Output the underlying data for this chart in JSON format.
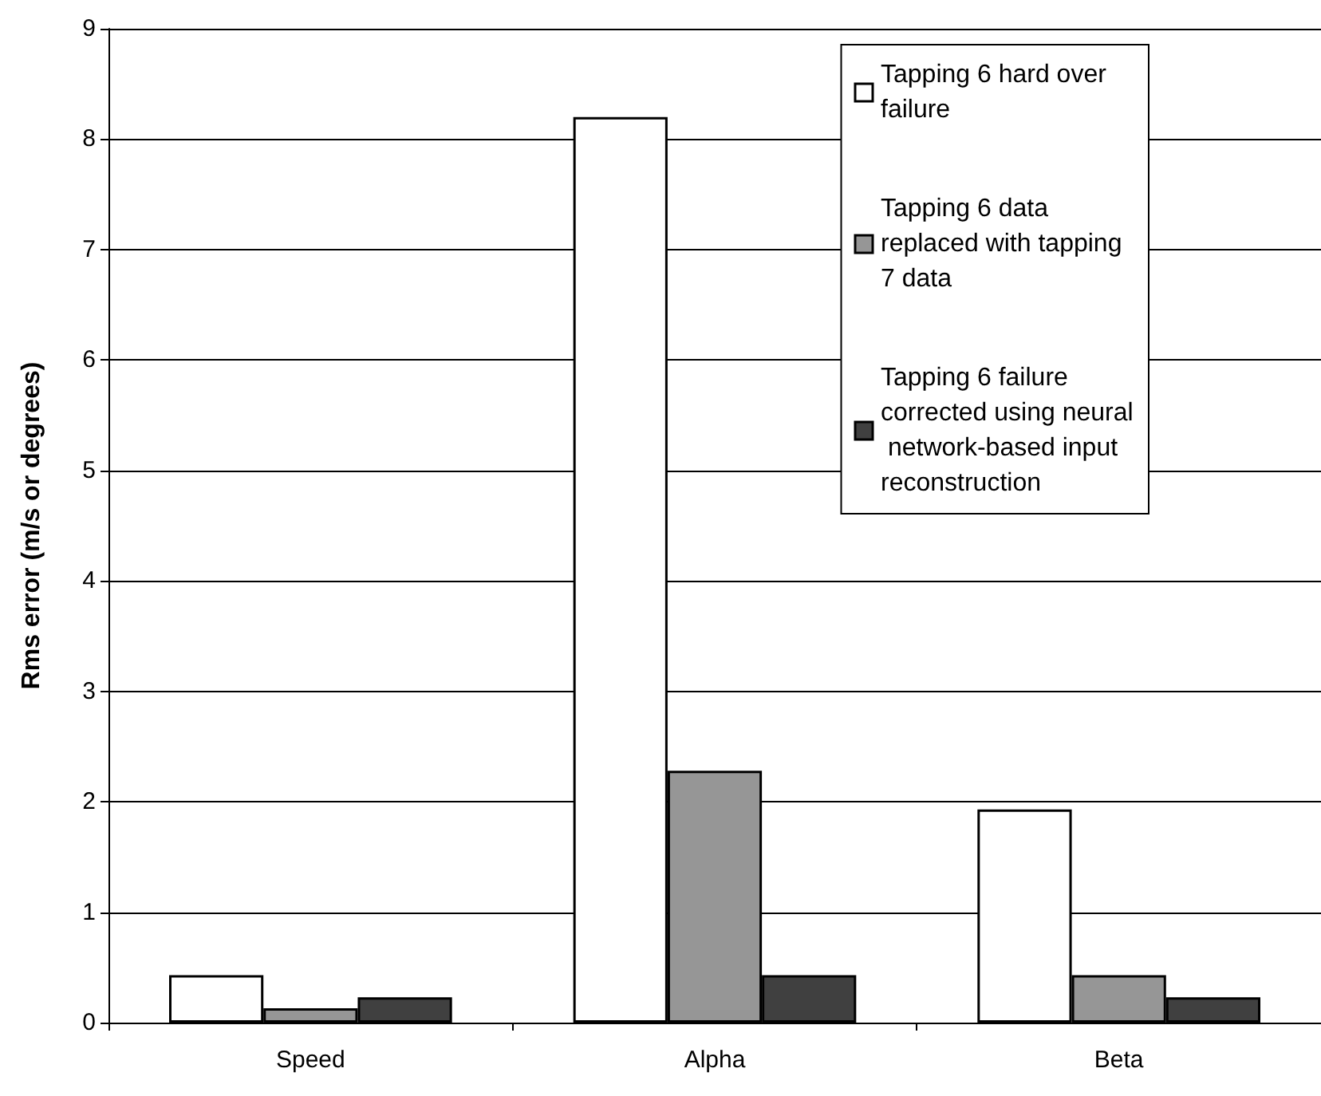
{
  "chart_data": {
    "type": "bar",
    "ylabel": "Rms error (m/s or degrees)",
    "categories": [
      "Speed",
      "Alpha",
      "Beta"
    ],
    "series": [
      {
        "name": "Tapping 6 hard over failure",
        "color": "#ffffff",
        "values": [
          0.43,
          8.2,
          1.93
        ]
      },
      {
        "name": "Tapping 6 data replaced with tapping 7 data",
        "color": "#969696",
        "values": [
          0.13,
          2.28,
          0.43
        ]
      },
      {
        "name": "Tapping 6 failure corrected using neural network-based input reconstruction",
        "color": "#404040",
        "values": [
          0.23,
          0.43,
          0.23
        ]
      }
    ],
    "ylim": [
      0,
      9
    ],
    "yticks": [
      0,
      1,
      2,
      3,
      4,
      5,
      6,
      7,
      8,
      9
    ],
    "grid": "y",
    "legend": "top right"
  }
}
